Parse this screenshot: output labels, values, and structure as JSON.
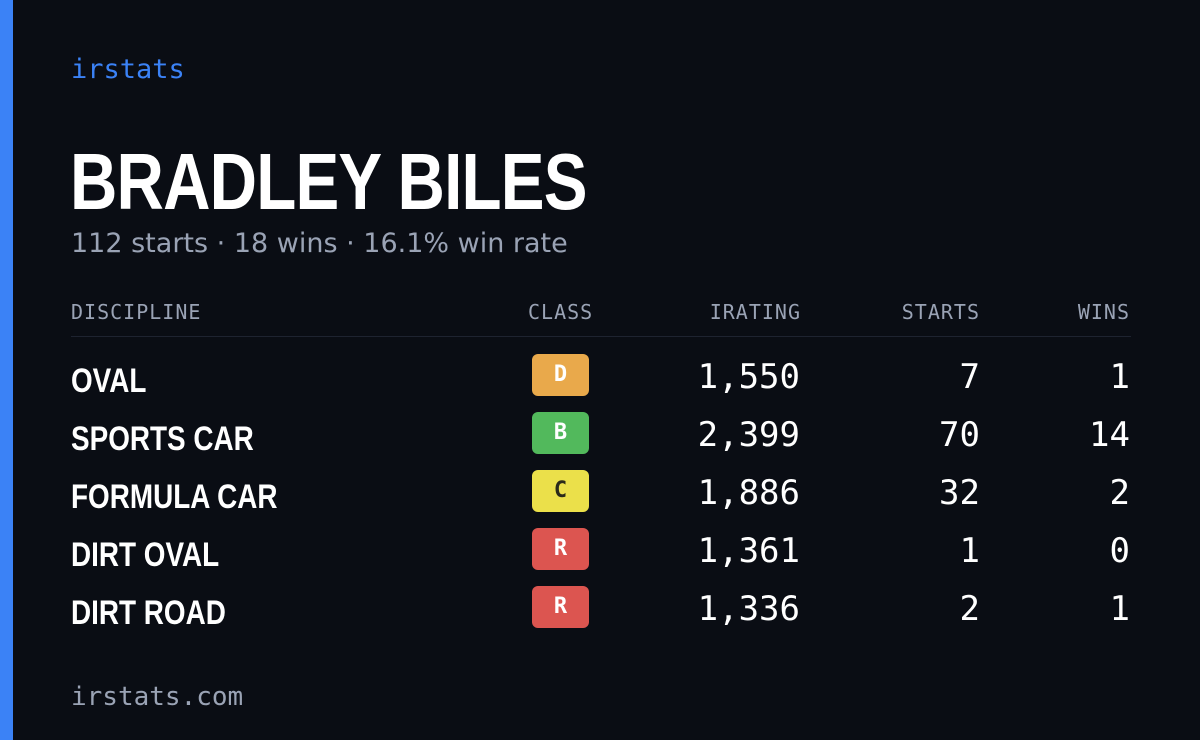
{
  "brand": "irstats",
  "player": {
    "name": "BRADLEY BILES",
    "summary": "112 starts · 18 wins · 16.1% win rate"
  },
  "table": {
    "headers": {
      "discipline": "DISCIPLINE",
      "class": "CLASS",
      "irating": "IRATING",
      "starts": "STARTS",
      "wins": "WINS"
    },
    "rows": [
      {
        "discipline": "OVAL",
        "class": "D",
        "class_color": "#e9a94b",
        "class_text_color": "#ffffff",
        "irating": "1,550",
        "starts": "7",
        "wins": "1"
      },
      {
        "discipline": "SPORTS CAR",
        "class": "B",
        "class_color": "#52b95c",
        "class_text_color": "#ffffff",
        "irating": "2,399",
        "starts": "70",
        "wins": "14"
      },
      {
        "discipline": "FORMULA CAR",
        "class": "C",
        "class_color": "#ebe04a",
        "class_text_color": "#2a2a1a",
        "irating": "1,886",
        "starts": "32",
        "wins": "2"
      },
      {
        "discipline": "DIRT OVAL",
        "class": "R",
        "class_color": "#dc5550",
        "class_text_color": "#ffffff",
        "irating": "1,361",
        "starts": "1",
        "wins": "0"
      },
      {
        "discipline": "DIRT ROAD",
        "class": "R",
        "class_color": "#dc5550",
        "class_text_color": "#ffffff",
        "irating": "1,336",
        "starts": "2",
        "wins": "1"
      }
    ]
  },
  "footer": {
    "url": "irstats.com"
  },
  "colors": {
    "background": "#0a0d14",
    "accent": "#3b82f6",
    "muted_text": "#9aa3b5"
  }
}
